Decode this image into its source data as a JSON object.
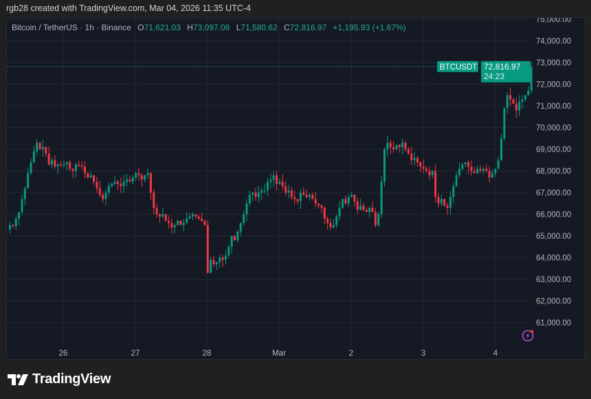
{
  "attribution": "rgb28 created with TradingView.com, Mar 04, 2026 11:35 UTC-4",
  "legend": {
    "symbol": "Bitcoin / TetherUS · 1h · Binance",
    "o_label": "O",
    "o": "71,621.03",
    "h_label": "H",
    "h": "73,097.08",
    "l_label": "L",
    "l": "71,580.62",
    "c_label": "C",
    "c": "72,816.97",
    "change": "+1,195.93 (+1.67%)"
  },
  "price_tag": {
    "symbol": "BTCUSDT",
    "price": "72,816.97",
    "countdown": "24:23"
  },
  "footer": {
    "brand": "TradingView"
  },
  "colors": {
    "up": "#089981",
    "down": "#f23645",
    "background": "#151924",
    "accent": "#22ab94",
    "alert": "#b84fd6"
  },
  "icons": [
    "tradingview-logo-icon",
    "lightning-alert-icon"
  ],
  "chart_data": {
    "type": "candlestick",
    "interval": "1h",
    "ylim": [
      60000,
      75000
    ],
    "y_ticks": [
      "75,000.00",
      "74,000.00",
      "73,000.00",
      "72,000.00",
      "71,000.00",
      "70,000.00",
      "69,000.00",
      "68,000.00",
      "67,000.00",
      "66,000.00",
      "65,000.00",
      "64,000.00",
      "63,000.00",
      "62,000.00",
      "61,000.00"
    ],
    "y_tick_values": [
      75000,
      74000,
      73000,
      72000,
      71000,
      70000,
      69000,
      68000,
      67000,
      66000,
      65000,
      64000,
      63000,
      62000,
      61000
    ],
    "x_ticks": [
      "26",
      "27",
      "28",
      "Mar",
      "2",
      "3",
      "4"
    ],
    "last_price": 72816.97,
    "first_open": 65300,
    "closes": [
      65500,
      65450,
      65800,
      66100,
      66700,
      67200,
      67900,
      68400,
      68900,
      69300,
      69000,
      69100,
      68800,
      68300,
      68500,
      68200,
      68300,
      68250,
      68300,
      68400,
      68100,
      68000,
      68300,
      68250,
      68200,
      67900,
      67700,
      67800,
      67500,
      67200,
      66900,
      66700,
      67000,
      67300,
      67400,
      67500,
      67400,
      67300,
      67500,
      67600,
      67500,
      67700,
      67900,
      67800,
      67600,
      67800,
      67900,
      67000,
      66300,
      66000,
      65900,
      66000,
      65700,
      65600,
      65400,
      65500,
      65700,
      65500,
      65600,
      65800,
      65900,
      66000,
      65900,
      65800,
      65700,
      65500,
      63300,
      63900,
      63700,
      63800,
      64000,
      63900,
      64100,
      64500,
      65000,
      64800,
      65200,
      65600,
      66000,
      66500,
      66900,
      67000,
      66800,
      67000,
      67100,
      67100,
      67500,
      67600,
      67800,
      67400,
      67500,
      67300,
      67000,
      67100,
      66800,
      66700,
      66600,
      67000,
      66900,
      66800,
      66900,
      66700,
      66500,
      66400,
      66300,
      65800,
      65600,
      65400,
      65500,
      65900,
      66300,
      66700,
      66500,
      66800,
      66900,
      66600,
      66200,
      66400,
      66200,
      66100,
      66300,
      66100,
      65500,
      66000,
      67500,
      69000,
      69300,
      69100,
      69000,
      69200,
      69100,
      69300,
      69000,
      68800,
      68500,
      68600,
      68400,
      68200,
      68100,
      68000,
      67800,
      68000,
      66800,
      66500,
      66700,
      66400,
      66300,
      66800,
      67300,
      67800,
      68100,
      68300,
      68400,
      68200,
      68000,
      67900,
      68100,
      68000,
      68100,
      68000,
      67700,
      67900,
      68100,
      68500,
      69500,
      70900,
      71500,
      71300,
      71100,
      70800,
      71200,
      71300,
      71500,
      71700,
      72816.97
    ]
  }
}
